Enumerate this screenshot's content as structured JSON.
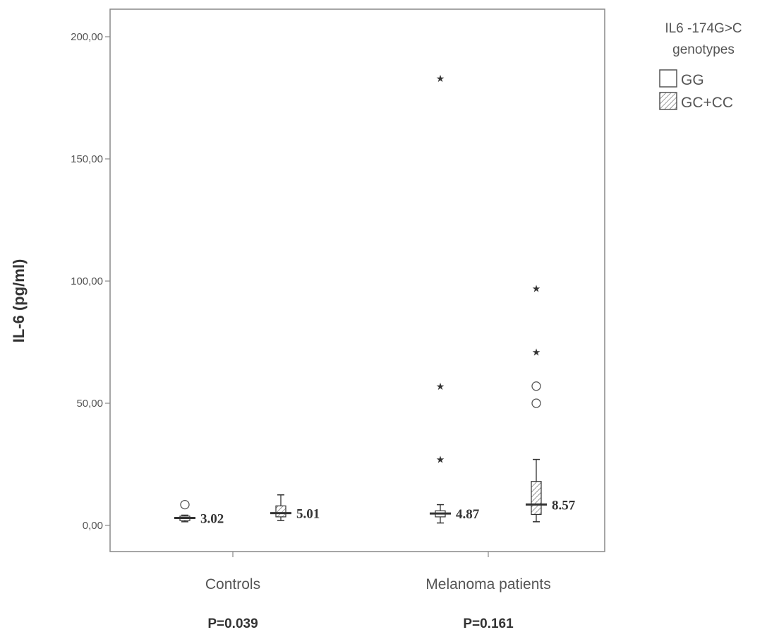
{
  "chart_data": {
    "type": "box",
    "ylabel": "IL-6 (pg/ml)",
    "ylim": [
      -10,
      212
    ],
    "yticks": [
      {
        "value": 0,
        "label": "0,00"
      },
      {
        "value": 50,
        "label": "50,00"
      },
      {
        "value": 100,
        "label": "100,00"
      },
      {
        "value": 150,
        "label": "150,00"
      },
      {
        "value": 200,
        "label": "200,00"
      }
    ],
    "categories": [
      "Controls",
      "Melanoma patients"
    ],
    "p_values": [
      "P=0.039",
      "P=0.161"
    ],
    "legend": {
      "title_lines": [
        "IL6 -174G>C",
        "genotypes"
      ],
      "items": [
        {
          "label": "GG",
          "pattern": "plain"
        },
        {
          "label": "GC+CC",
          "pattern": "hatched"
        }
      ]
    },
    "series": [
      {
        "name": "GG",
        "boxes": [
          {
            "category": "Controls",
            "min": 1.5,
            "q1": 2.0,
            "median": 3.02,
            "q3": 3.8,
            "max": 4.2,
            "median_label": "3.02",
            "outliers": [
              8.5
            ],
            "extremes": []
          },
          {
            "category": "Melanoma patients",
            "min": 1.0,
            "q1": 3.5,
            "median": 4.87,
            "q3": 6.0,
            "max": 8.5,
            "median_label": "4.87",
            "outliers": [],
            "extremes": [
              183,
              57,
              27
            ]
          }
        ]
      },
      {
        "name": "GC+CC",
        "boxes": [
          {
            "category": "Controls",
            "min": 2.0,
            "q1": 3.5,
            "median": 5.01,
            "q3": 8.0,
            "max": 12.5,
            "median_label": "5.01",
            "outliers": [],
            "extremes": []
          },
          {
            "category": "Melanoma patients",
            "min": 1.5,
            "q1": 4.5,
            "median": 8.57,
            "q3": 18.0,
            "max": 27.0,
            "median_label": "8.57",
            "outliers": [
              57,
              50
            ],
            "extremes": [
              97,
              71
            ]
          }
        ]
      }
    ],
    "colors": {
      "box_fill": "#ffffff",
      "stroke": "#333333",
      "frame": "#888888",
      "text": "#555555"
    }
  }
}
